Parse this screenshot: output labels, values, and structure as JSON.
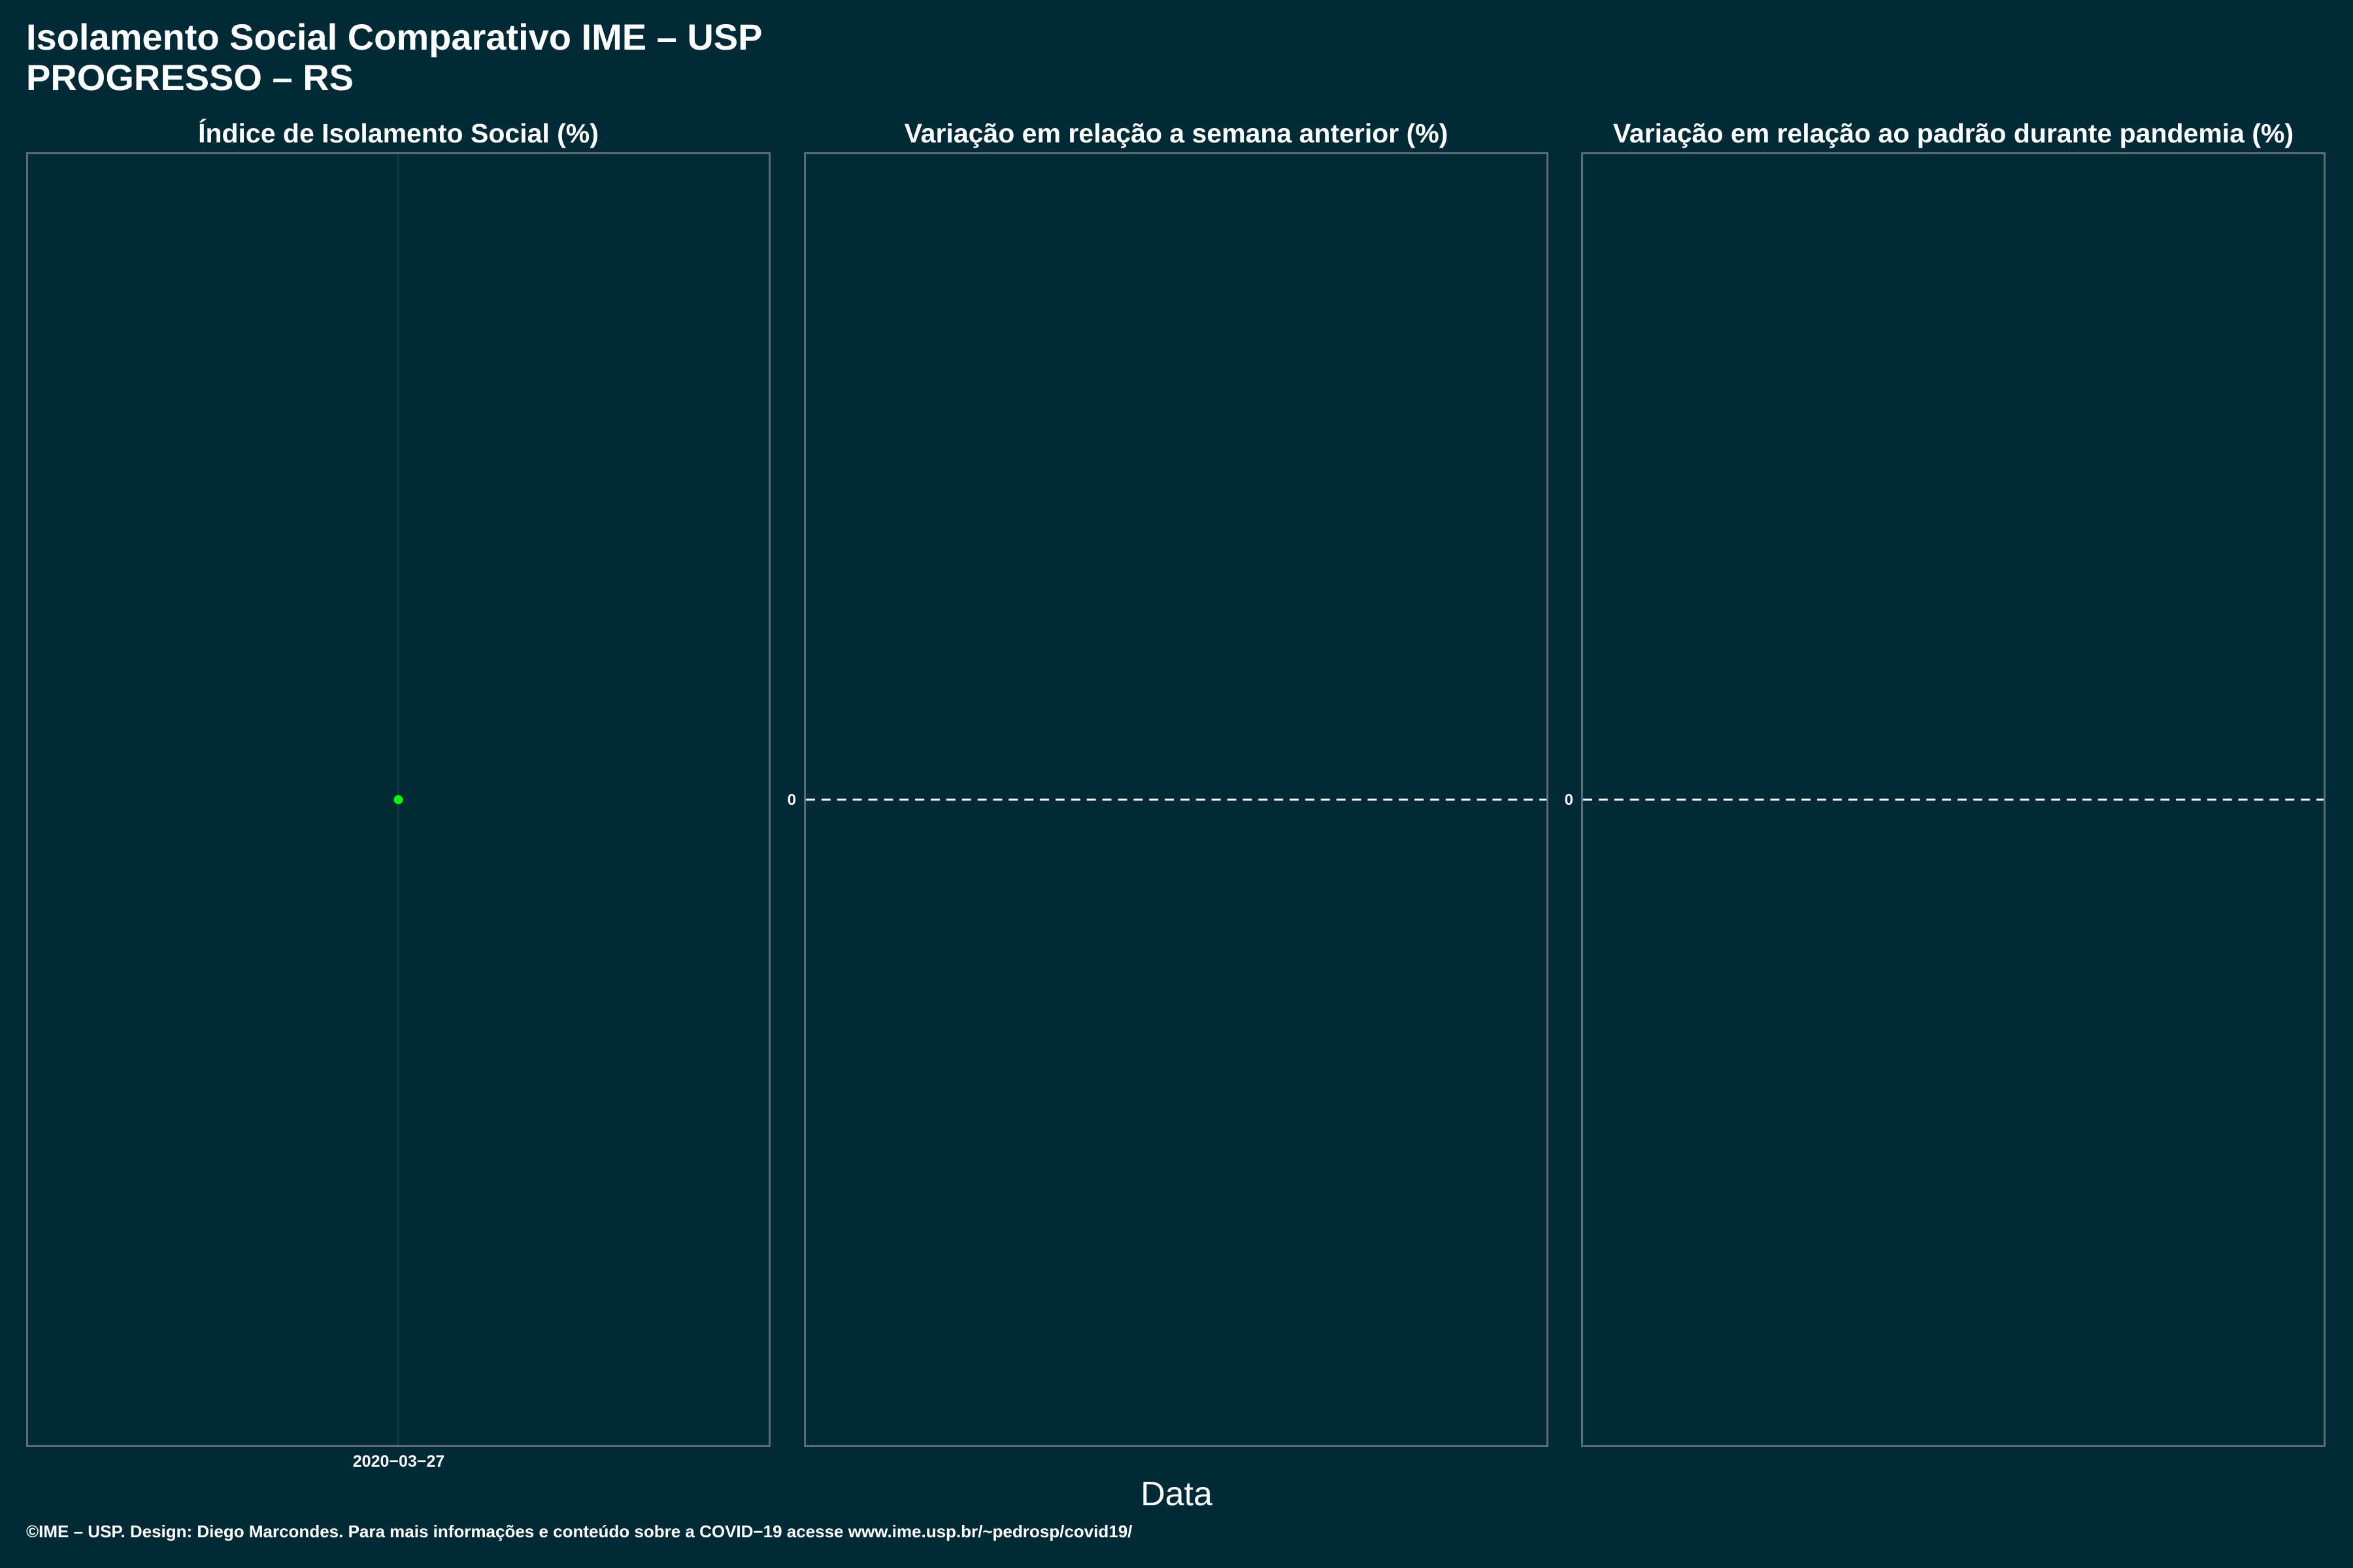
{
  "chart": {
    "title_line1": "Isolamento Social Comparativo IME – USP",
    "title_line2": "PROGRESSO – RS",
    "xlabel": "Data",
    "caption": "©IME – USP. Design: Diego Marcondes. Para mais informações e conteúdo sobre a COVID−19 acesse www.ime.usp.br/~pedrosp/covid19/"
  },
  "chart_data": [
    {
      "type": "scatter",
      "title": "Índice de Isolamento Social (%)",
      "x": [
        "2020−03−27"
      ],
      "series": [
        {
          "values": [
            null
          ],
          "color": "#00ff00"
        }
      ],
      "xtick_labels": [
        "2020−03−27"
      ],
      "ytick_labels": [],
      "grid": true
    },
    {
      "type": "line",
      "title": "Variação em relação a semana anterior (%)",
      "x": [],
      "series": [],
      "reference_line": {
        "y": 0,
        "style": "dashed",
        "color": "#ffffff"
      },
      "ytick_labels": [
        "0"
      ]
    },
    {
      "type": "line",
      "title": "Variação em relação ao padrão durante pandemia (%)",
      "x": [],
      "series": [],
      "reference_line": {
        "y": 0,
        "style": "dashed",
        "color": "#ffffff"
      },
      "ytick_labels": [
        "0"
      ]
    }
  ]
}
